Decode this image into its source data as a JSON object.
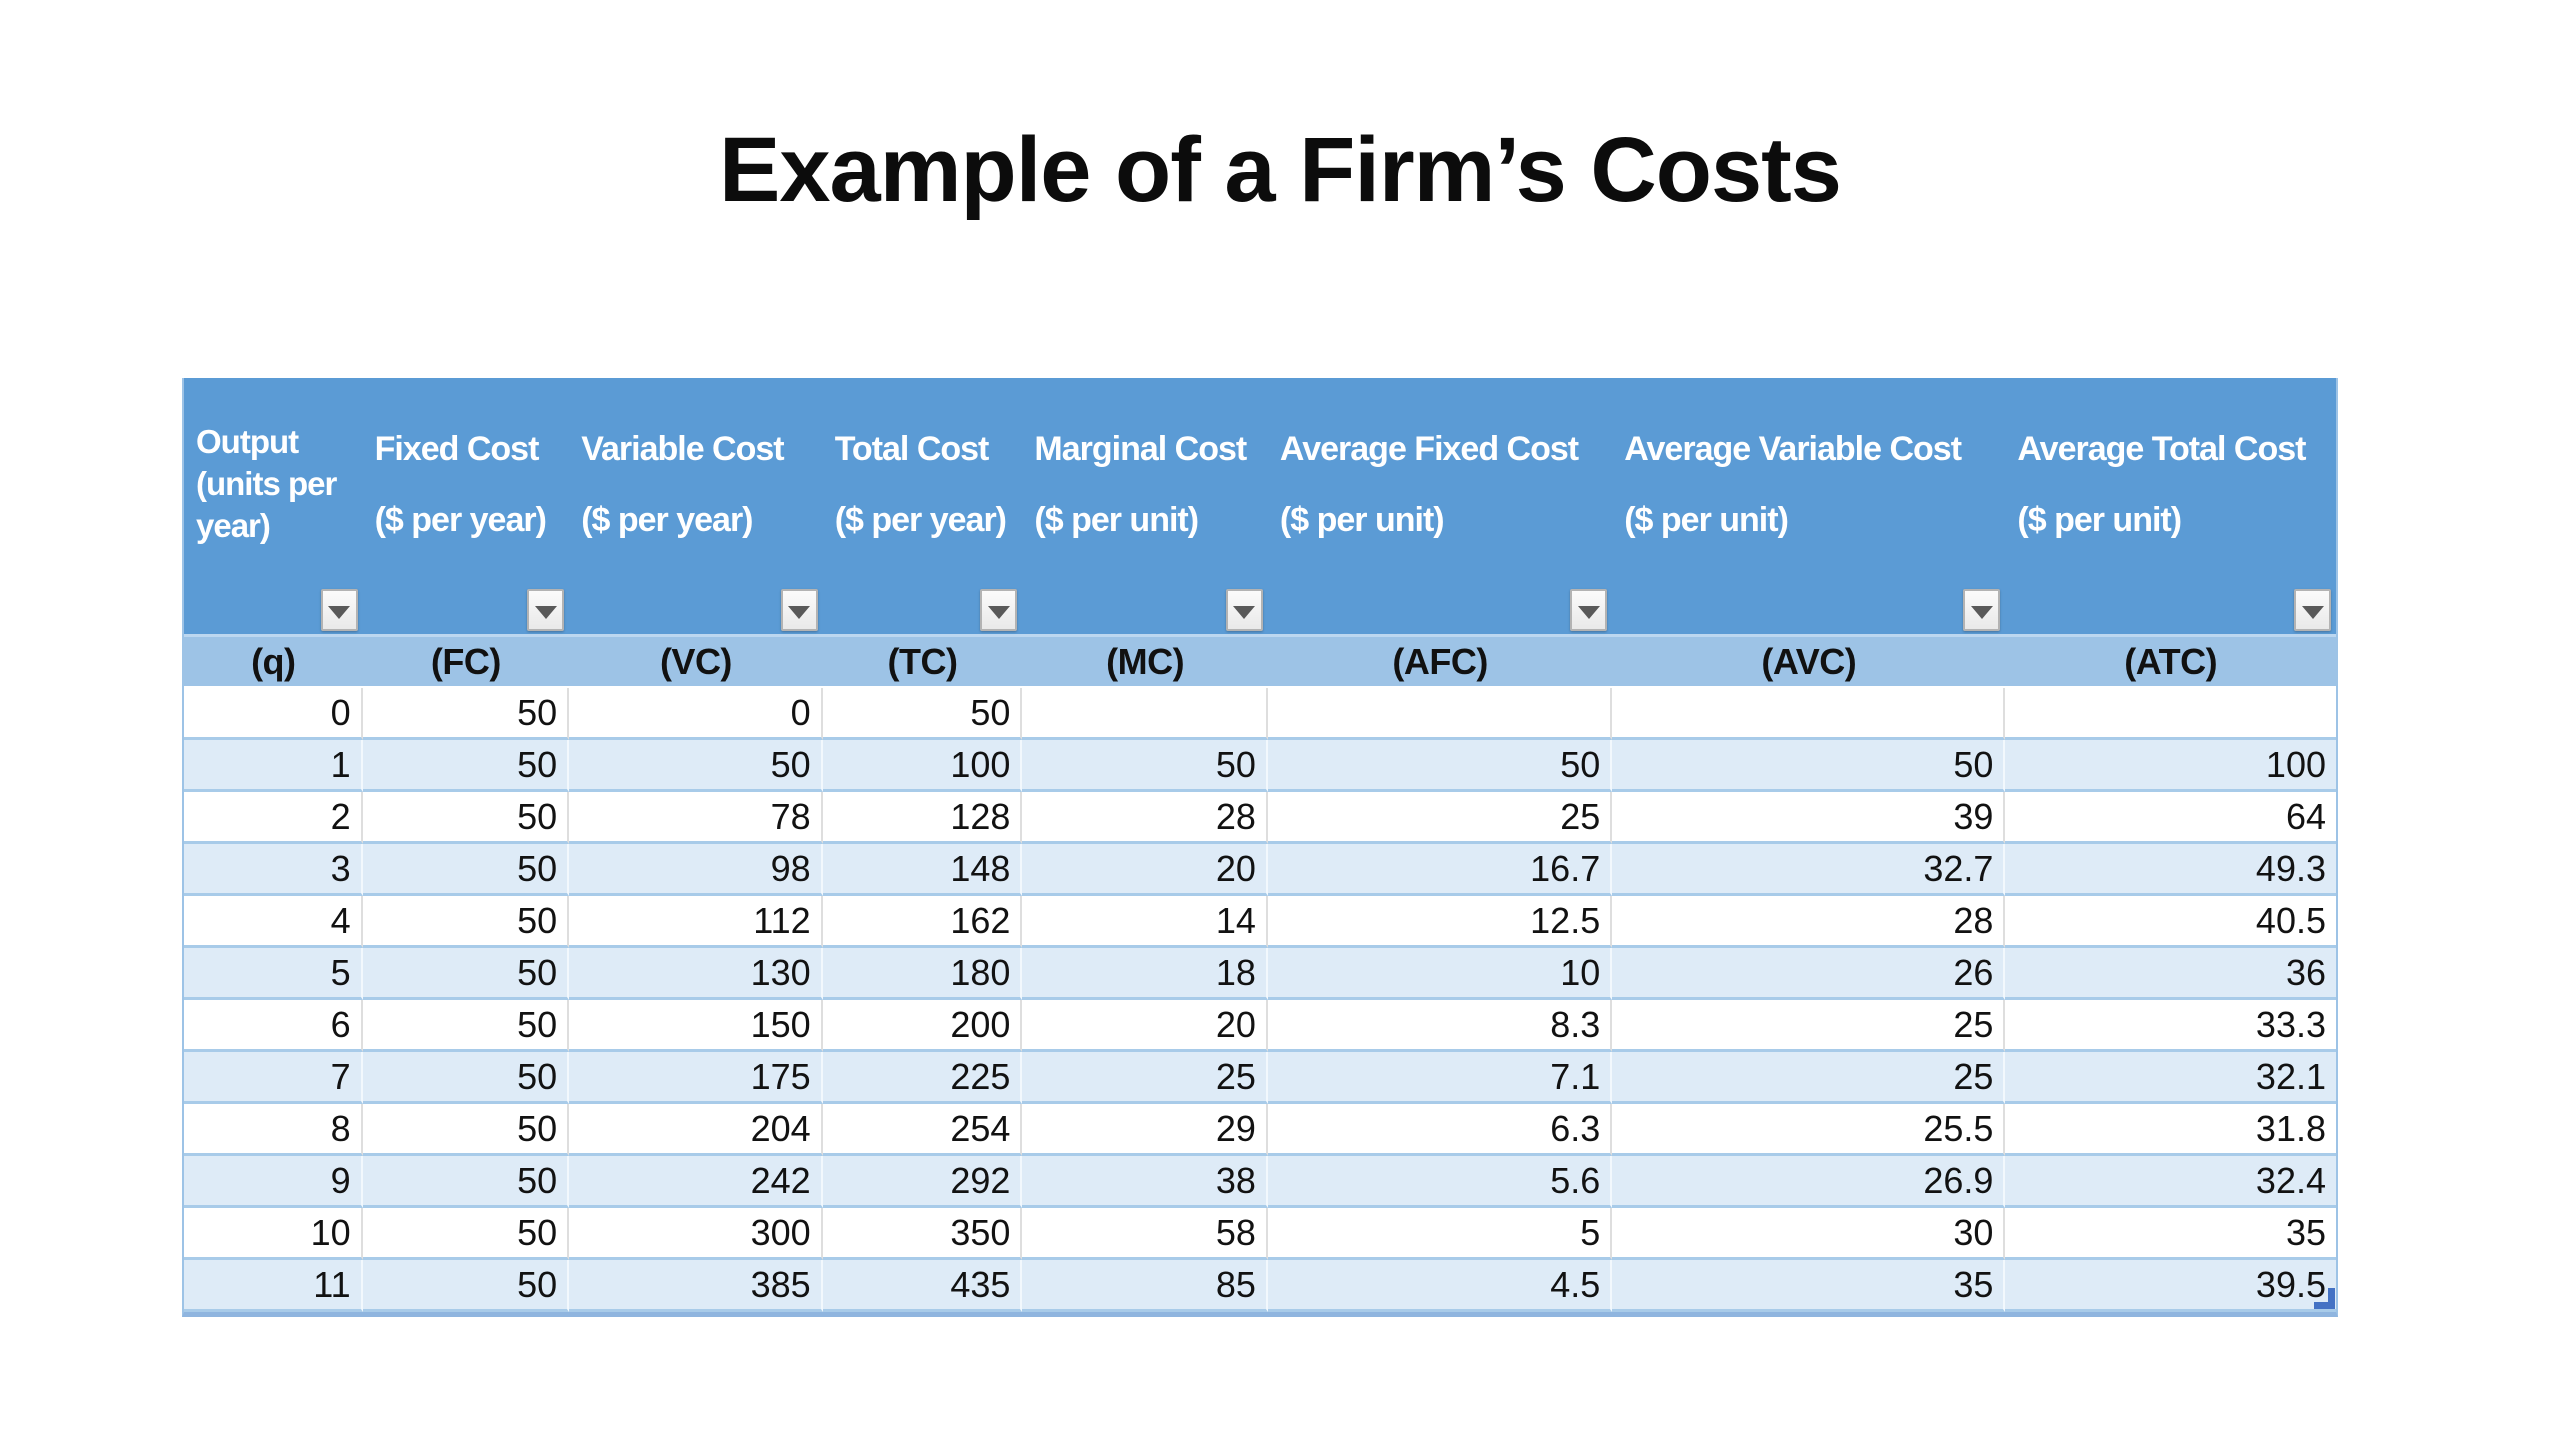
{
  "slide": {
    "title": "Example of a Firm’s Costs"
  },
  "table": {
    "columns": [
      {
        "name": "Output (units per year)",
        "unit": "",
        "code": "(q)"
      },
      {
        "name": "Fixed Cost",
        "unit": "($ per year)",
        "code": "(FC)"
      },
      {
        "name": "Variable Cost",
        "unit": "($ per year)",
        "code": "(VC)"
      },
      {
        "name": "Total Cost",
        "unit": "($ per year)",
        "code": "(TC)"
      },
      {
        "name": "Marginal Cost",
        "unit": "($ per unit)",
        "code": "(MC)"
      },
      {
        "name": "Average Fixed Cost",
        "unit": "($ per unit)",
        "code": "(AFC)"
      },
      {
        "name": "Average Variable Cost",
        "unit": "($ per unit)",
        "code": "(AVC)"
      },
      {
        "name": "Average Total Cost",
        "unit": "($ per unit)",
        "code": "(ATC)"
      }
    ],
    "rows": [
      [
        "0",
        "50",
        "0",
        "50",
        "",
        "",
        "",
        ""
      ],
      [
        "1",
        "50",
        "50",
        "100",
        "50",
        "50",
        "50",
        "100"
      ],
      [
        "2",
        "50",
        "78",
        "128",
        "28",
        "25",
        "39",
        "64"
      ],
      [
        "3",
        "50",
        "98",
        "148",
        "20",
        "16.7",
        "32.7",
        "49.3"
      ],
      [
        "4",
        "50",
        "112",
        "162",
        "14",
        "12.5",
        "28",
        "40.5"
      ],
      [
        "5",
        "50",
        "130",
        "180",
        "18",
        "10",
        "26",
        "36"
      ],
      [
        "6",
        "50",
        "150",
        "200",
        "20",
        "8.3",
        "25",
        "33.3"
      ],
      [
        "7",
        "50",
        "175",
        "225",
        "25",
        "7.1",
        "25",
        "32.1"
      ],
      [
        "8",
        "50",
        "204",
        "254",
        "29",
        "6.3",
        "25.5",
        "31.8"
      ],
      [
        "9",
        "50",
        "242",
        "292",
        "38",
        "5.6",
        "26.9",
        "32.4"
      ],
      [
        "10",
        "50",
        "300",
        "350",
        "58",
        "5",
        "30",
        "35"
      ],
      [
        "11",
        "50",
        "385",
        "435",
        "85",
        "4.5",
        "35",
        "39.5"
      ]
    ],
    "filter_icon": "chevron-down-icon"
  },
  "chart_data": {
    "type": "table",
    "title": "Example of a Firm’s Costs",
    "columns": [
      "Output (units per year) (q)",
      "Fixed Cost ($ per year) (FC)",
      "Variable Cost ($ per year) (VC)",
      "Total Cost ($ per year) (TC)",
      "Marginal Cost ($ per unit) (MC)",
      "Average Fixed Cost ($ per unit) (AFC)",
      "Average Variable Cost ($ per unit) (AVC)",
      "Average Total Cost ($ per unit) (ATC)"
    ],
    "rows": [
      [
        0,
        50,
        0,
        50,
        null,
        null,
        null,
        null
      ],
      [
        1,
        50,
        50,
        100,
        50,
        50,
        50,
        100
      ],
      [
        2,
        50,
        78,
        128,
        28,
        25,
        39,
        64
      ],
      [
        3,
        50,
        98,
        148,
        20,
        16.7,
        32.7,
        49.3
      ],
      [
        4,
        50,
        112,
        162,
        14,
        12.5,
        28,
        40.5
      ],
      [
        5,
        50,
        130,
        180,
        18,
        10,
        26,
        36
      ],
      [
        6,
        50,
        150,
        200,
        20,
        8.3,
        25,
        33.3
      ],
      [
        7,
        50,
        175,
        225,
        25,
        7.1,
        25,
        32.1
      ],
      [
        8,
        50,
        204,
        254,
        29,
        6.3,
        25.5,
        31.8
      ],
      [
        9,
        50,
        242,
        292,
        38,
        5.6,
        26.9,
        32.4
      ],
      [
        10,
        50,
        300,
        350,
        58,
        5,
        30,
        35
      ],
      [
        11,
        50,
        385,
        435,
        85,
        4.5,
        35,
        39.5
      ]
    ]
  },
  "colors": {
    "header_fill": "#5B9BD5",
    "subheader_fill": "#9DC3E6",
    "banded_row_fill": "#DEEBF7",
    "row_separator": "#A8CBE9",
    "outer_border": "#9DC3E6",
    "table_bottom_line": "#8FB5DF",
    "header_text": "#FFFFFF",
    "body_text": "#121212",
    "filter_triangle": "#595959",
    "resize_handle": "#4472C4"
  }
}
